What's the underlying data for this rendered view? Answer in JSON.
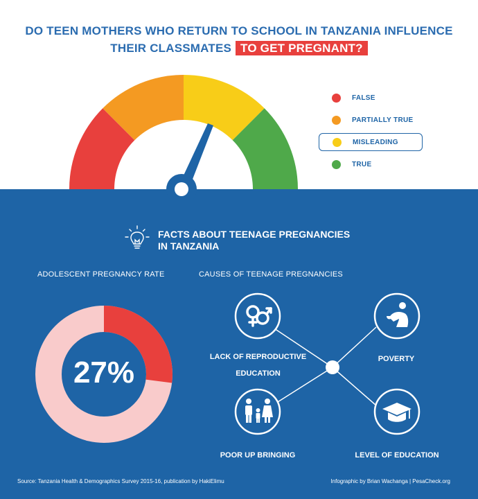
{
  "title": {
    "line1": "DO TEEN MOTHERS WHO RETURN TO SCHOOL IN TANZANIA INFLUENCE",
    "line2": "THEIR CLASSMATES",
    "highlight": "TO GET PREGNANT?"
  },
  "colors": {
    "false": "#e8403d",
    "partially_true": "#f49a22",
    "misleading": "#f8cd18",
    "true": "#4fa94a",
    "brand_blue": "#1e64a6"
  },
  "gauge": {
    "selected": "MISLEADING"
  },
  "legend": [
    {
      "label": "FALSE",
      "color": "#e8403d"
    },
    {
      "label": "PARTIALLY TRUE",
      "color": "#f49a22"
    },
    {
      "label": "MISLEADING",
      "color": "#f8cd18"
    },
    {
      "label": "TRUE",
      "color": "#4fa94a"
    }
  ],
  "facts": {
    "title_line1": "FACTS ABOUT TEENAGE PREGNANCIES",
    "title_line2": "IN TANZANIA"
  },
  "rate": {
    "heading": "ADOLESCENT PREGNANCY RATE",
    "value": "27%",
    "fraction": 0.27
  },
  "causes": {
    "heading": "CAUSES OF TEENAGE PREGNANCIES",
    "items": [
      {
        "line1": "LACK OF REPRODUCTIVE",
        "line2": "EDUCATION",
        "icon": "gender-symbols-icon"
      },
      {
        "line1": "POVERTY",
        "icon": "poverty-icon"
      },
      {
        "line1": "POOR UP BRINGING",
        "icon": "family-icon"
      },
      {
        "line1": "LEVEL OF EDUCATION",
        "icon": "graduation-cap-icon"
      }
    ]
  },
  "footer": {
    "source": "Source: Tanzania Health & Demographics Survey 2015-16, publication by HakiElimu",
    "credit": "Infographic by Brian Wachanga | PesaCheck.org"
  }
}
